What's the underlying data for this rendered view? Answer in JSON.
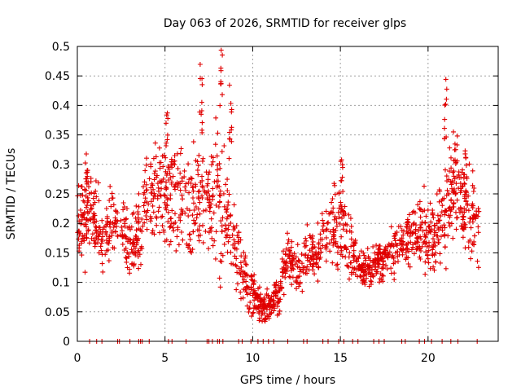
{
  "chart_data": {
    "type": "scatter",
    "title": "Day 063 of 2026, SRMTID for receiver glps",
    "xlabel": "GPS time / hours",
    "ylabel": "SRMTID / TECUs",
    "xlim": [
      0,
      24
    ],
    "ylim": [
      0,
      0.5
    ],
    "xticks": [
      0,
      5,
      10,
      15,
      20
    ],
    "xtick_labels": [
      "0",
      "5",
      "10",
      "15",
      "20"
    ],
    "yticks": [
      0,
      0.05,
      0.1,
      0.15,
      0.2,
      0.25,
      0.3,
      0.35,
      0.4,
      0.45,
      0.5
    ],
    "ytick_labels": [
      "0",
      "0.05",
      "0.1",
      "0.15",
      "0.2",
      "0.25",
      "0.3",
      "0.35",
      "0.4",
      "0.45",
      "0.5"
    ],
    "grid": true,
    "marker": "+",
    "color": "#e00000",
    "series": [
      {
        "name": "SRMTID",
        "trend": {
          "x": [
            0,
            0.5,
            1,
            1.5,
            2,
            2.5,
            3,
            3.5,
            4,
            4.5,
            5,
            5.5,
            6,
            6.5,
            7,
            7.5,
            8,
            8.5,
            9,
            9.5,
            10,
            10.5,
            11,
            11.5,
            12,
            12.5,
            13,
            13.5,
            14,
            14.5,
            15,
            15.5,
            16,
            16.5,
            17,
            17.5,
            18,
            18.5,
            19,
            19.5,
            20,
            20.5,
            21,
            21.5,
            22,
            22.5,
            22.9
          ],
          "y": [
            0.19,
            0.22,
            0.2,
            0.17,
            0.21,
            0.2,
            0.16,
            0.18,
            0.25,
            0.26,
            0.24,
            0.25,
            0.23,
            0.22,
            0.25,
            0.24,
            0.25,
            0.22,
            0.17,
            0.11,
            0.08,
            0.06,
            0.06,
            0.08,
            0.15,
            0.12,
            0.14,
            0.15,
            0.17,
            0.19,
            0.2,
            0.17,
            0.13,
            0.12,
            0.13,
            0.14,
            0.16,
            0.17,
            0.18,
            0.19,
            0.18,
            0.18,
            0.22,
            0.27,
            0.24,
            0.21,
            0.19
          ],
          "spread": [
            0.05,
            0.07,
            0.06,
            0.05,
            0.05,
            0.04,
            0.05,
            0.05,
            0.05,
            0.06,
            0.07,
            0.07,
            0.07,
            0.08,
            0.08,
            0.08,
            0.1,
            0.08,
            0.06,
            0.04,
            0.03,
            0.02,
            0.02,
            0.03,
            0.03,
            0.03,
            0.04,
            0.04,
            0.05,
            0.05,
            0.06,
            0.05,
            0.03,
            0.03,
            0.03,
            0.03,
            0.04,
            0.04,
            0.04,
            0.05,
            0.05,
            0.05,
            0.07,
            0.07,
            0.06,
            0.06,
            0.05
          ]
        },
        "peaks": [
          {
            "x": 0.55,
            "y": 0.35
          },
          {
            "x": 5.1,
            "y": 0.4
          },
          {
            "x": 7.05,
            "y": 0.47
          },
          {
            "x": 8.2,
            "y": 0.5
          },
          {
            "x": 8.75,
            "y": 0.44
          },
          {
            "x": 15.1,
            "y": 0.32
          },
          {
            "x": 21.0,
            "y": 0.46
          },
          {
            "x": 22.1,
            "y": 0.35
          }
        ],
        "zero_points": [
          0.7,
          1.1,
          1.4,
          2.3,
          2.4,
          3.0,
          3.5,
          3.6,
          3.7,
          4.1,
          5.2,
          5.4,
          6.2,
          7.4,
          7.5,
          7.7,
          8.0,
          8.1,
          8.3,
          9.2,
          9.4,
          9.9,
          10.3,
          10.6,
          10.9,
          11.2,
          12.0,
          12.9,
          13.1,
          14.0,
          14.3,
          14.9,
          15.2,
          15.7,
          16.0,
          16.9,
          17.2,
          17.5,
          18.5,
          18.7,
          19.5,
          19.8,
          20.2,
          20.8,
          21.3,
          21.7,
          22.8
        ]
      }
    ]
  }
}
